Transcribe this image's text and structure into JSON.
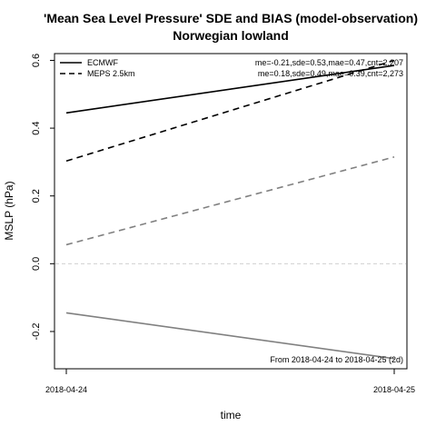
{
  "chart_data": {
    "type": "line",
    "title_line1": "'Mean Sea Level Pressure' SDE and BIAS (model-observation)",
    "title_line2": "Norwegian lowland",
    "xlabel": "time",
    "ylabel": "MSLP (hPa)",
    "x": [
      "2018-04-24",
      "2018-04-25"
    ],
    "ylim": [
      -0.31,
      0.62
    ],
    "yticks": [
      -0.2,
      0.0,
      0.2,
      0.4,
      0.6
    ],
    "ytick_labels": [
      "-0.2",
      "0.0",
      "0.2",
      "0.4",
      "0.6"
    ],
    "series": [
      {
        "name": "ECMWF",
        "metric": "sde",
        "values": [
          0.445,
          0.585
        ],
        "color": "#000000",
        "dash": "solid"
      },
      {
        "name": "MEPS 2.5km",
        "metric": "sde",
        "values": [
          0.303,
          0.6
        ],
        "color": "#000000",
        "dash": "dashed"
      },
      {
        "metric": "bias",
        "values": [
          -0.145,
          -0.28
        ],
        "color": "#808080",
        "dash": "solid"
      },
      {
        "metric": "bias",
        "values": [
          0.056,
          0.315
        ],
        "color": "#808080",
        "dash": "dashed"
      }
    ],
    "zero_line": {
      "value": 0.0,
      "color": "#d0d0d0",
      "dash": "dashed"
    },
    "legend": {
      "placement": "top-left",
      "entries": [
        {
          "label": "ECMWF",
          "dash": "solid"
        },
        {
          "label": "MEPS 2.5km",
          "dash": "dashed"
        }
      ]
    },
    "stats": [
      "me=-0.21,sde=0.53,mae=0.47,cnt=2,207",
      "me=0.18,sde=0.49,mae=0.39,cnt=2,273"
    ],
    "period_note": "From 2018-04-24 to 2018-04-25 (2d)"
  }
}
